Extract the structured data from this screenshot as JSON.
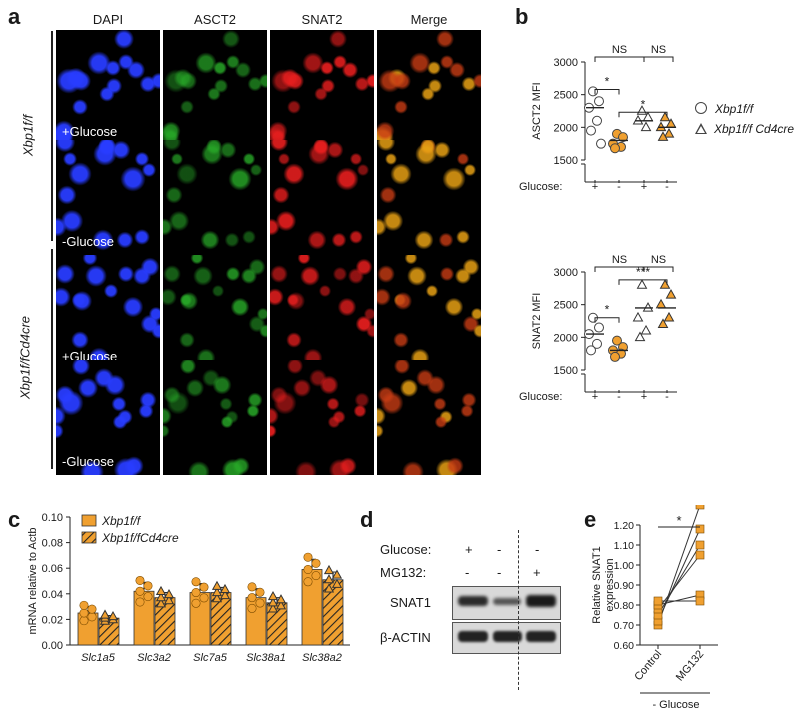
{
  "panels": {
    "a": "a",
    "b": "b",
    "c": "c",
    "d": "d",
    "e": "e"
  },
  "a": {
    "channels": [
      {
        "label": "DAPI",
        "color": "#1f2fe0"
      },
      {
        "label": "ASCT2",
        "color": "#1e8a1e"
      },
      {
        "label": "SNAT2",
        "color": "#d41a1a"
      },
      {
        "label": "Merge",
        "color": "#1a1a1a"
      }
    ],
    "genotypes": [
      "Xbp1f/f",
      "Xbp1f/fCd4cre"
    ],
    "conditions": [
      "+Glucose",
      "-Glucose",
      "+Glucose",
      "-Glucose"
    ]
  },
  "b": {
    "legend": [
      "Xbp1f/f",
      "Xbp1f/f Cd4cre"
    ],
    "glucose_label": "Glucose:",
    "glucose_signs": [
      "+",
      "-",
      "+",
      "-"
    ],
    "sig_top": [
      "NS",
      "NS",
      "*",
      "*"
    ],
    "sig_bottom": [
      "NS",
      "NS",
      "*",
      "***"
    ]
  },
  "chart_data": [
    {
      "type": "scatter",
      "ylabel": "ASCT2 MFI",
      "ylim": [
        1500,
        3000
      ],
      "yticks": [
        "3000",
        "2500",
        "2000",
        "1500"
      ],
      "series": [
        {
          "values": [
            2550,
            2400,
            2300,
            2100,
            1950,
            1750
          ],
          "mean": 2300
        },
        {
          "values": [
            1900,
            1850,
            1750,
            1700,
            1680
          ],
          "mean": 1800
        },
        {
          "values": [
            2250,
            2150,
            2100,
            2000
          ],
          "mean": 2100
        },
        {
          "values": [
            2150,
            2050,
            2000,
            1900,
            1850
          ],
          "mean": 2000
        }
      ]
    },
    {
      "type": "scatter",
      "ylabel": "SNAT2 MFI",
      "ylim": [
        1500,
        3000
      ],
      "yticks": [
        "3000",
        "2500",
        "2000",
        "1500"
      ],
      "series": [
        {
          "values": [
            2300,
            2150,
            2050,
            1900,
            1800
          ],
          "mean": 2050
        },
        {
          "values": [
            1950,
            1850,
            1800,
            1750,
            1700
          ],
          "mean": 1800
        },
        {
          "values": [
            2800,
            2450,
            2300,
            2100,
            2000
          ],
          "mean": 2450
        },
        {
          "values": [
            2800,
            2650,
            2500,
            2300,
            2200
          ],
          "mean": 2450
        }
      ]
    },
    {
      "type": "bar",
      "ylabel": "mRNA relative to Actb",
      "ylim": [
        0,
        0.1
      ],
      "yticks": [
        "0.10",
        "0.08",
        "0.06",
        "0.04",
        "0.02",
        "0.00"
      ],
      "categories": [
        "Slc1a5",
        "Slc3a2",
        "Slc7a5",
        "Slc38a1",
        "Slc38a2"
      ],
      "series": [
        {
          "name": "Xbp1f/f",
          "values": [
            0.025,
            0.042,
            0.041,
            0.037,
            0.059
          ],
          "err": [
            0.005,
            0.007,
            0.007,
            0.007,
            0.008
          ]
        },
        {
          "name": "Xbp1f/fCd4cre",
          "values": [
            0.021,
            0.037,
            0.041,
            0.033,
            0.051
          ],
          "err": [
            0.002,
            0.004,
            0.004,
            0.004,
            0.006
          ]
        }
      ]
    },
    {
      "type": "line",
      "ylabel": "Relative SNAT1 expression",
      "ylim": [
        0.6,
        1.2
      ],
      "yticks": [
        "1.20",
        "1.10",
        "1.00",
        "0.90",
        "0.80",
        "0.70",
        "0.60"
      ],
      "categories": [
        "Control",
        "MG132"
      ],
      "pairs": [
        [
          0.7,
          1.3
        ],
        [
          0.72,
          1.18
        ],
        [
          0.75,
          1.1
        ],
        [
          0.78,
          1.05
        ],
        [
          0.8,
          0.85
        ],
        [
          0.82,
          0.82
        ]
      ],
      "sig": "*",
      "group_label": "- Glucose"
    }
  ],
  "d": {
    "rows": [
      {
        "label": "Glucose:",
        "signs": [
          "+",
          "-",
          "-"
        ]
      },
      {
        "label": "MG132:",
        "signs": [
          "-",
          "-",
          "+"
        ]
      }
    ],
    "bands": [
      "SNAT1",
      "β-ACTIN"
    ]
  }
}
